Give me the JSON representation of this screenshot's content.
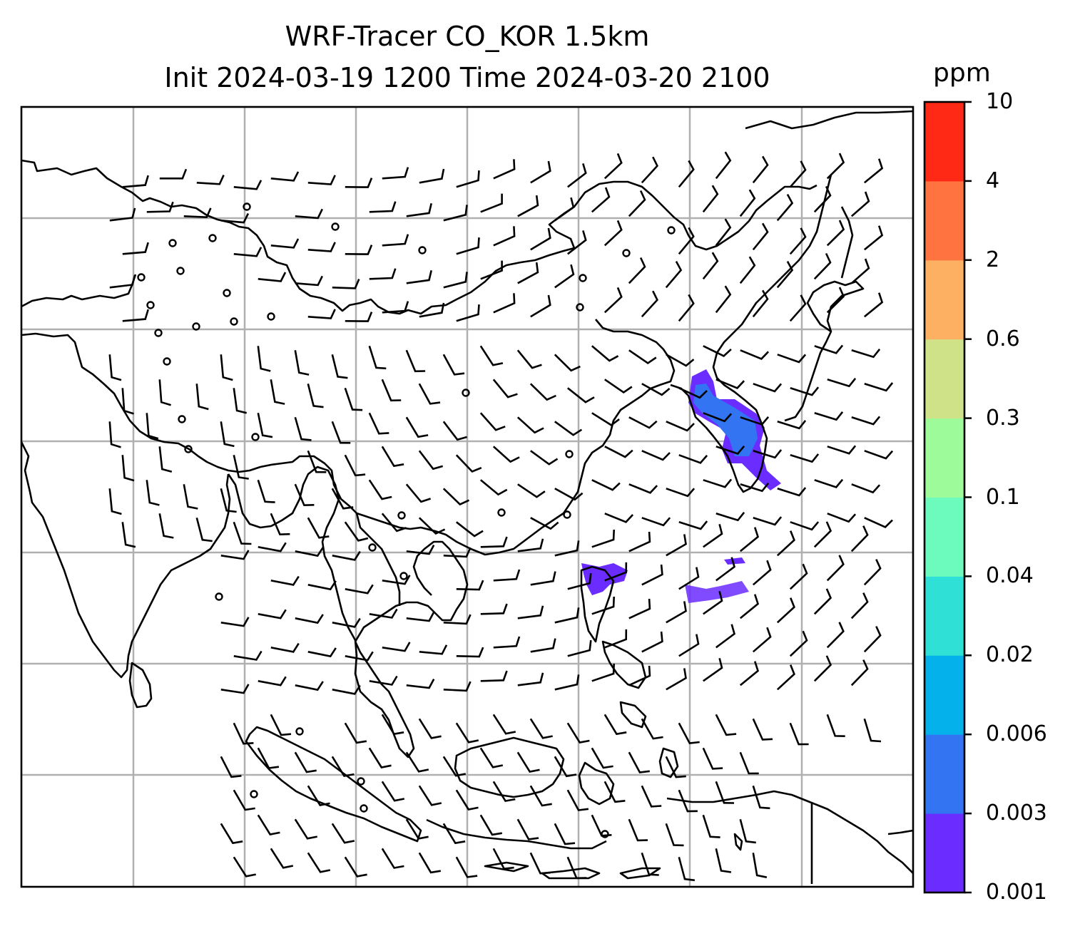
{
  "title": {
    "line1": "WRF-Tracer CO_KOR 1.5km",
    "line2": "Init 2024-03-19 1200 Time 2024-03-20 2100"
  },
  "colorbar": {
    "unit": "ppm",
    "ticks": [
      "0.001",
      "0.003",
      "0.006",
      "0.02",
      "0.04",
      "0.1",
      "0.3",
      "0.6",
      "2",
      "4",
      "10"
    ],
    "colors": [
      "#6a2cff",
      "#3374f2",
      "#05b1ea",
      "#2ee0d5",
      "#6dfbbd",
      "#9efb9a",
      "#d0e287",
      "#fdb061",
      "#ff7340",
      "#ff2916"
    ]
  },
  "map": {
    "grid_color": "#b0b0b0",
    "coastline_color": "#000000",
    "tracer_color_low": "#6a2cff",
    "tracer_color_mid": "#3374f2",
    "symbols": [
      "wind-barb",
      "calm-circle"
    ]
  }
}
